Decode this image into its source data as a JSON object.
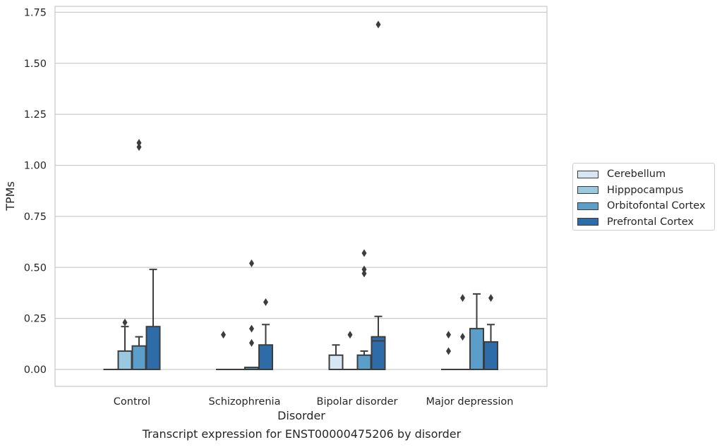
{
  "caption": "Transcript expression for ENST00000475206 by disorder",
  "chart_data": {
    "type": "box",
    "xlabel": "Disorder",
    "ylabel": "TPMs",
    "ylim": [
      -0.08,
      1.77
    ],
    "yticks": [
      0.0,
      0.25,
      0.5,
      0.75,
      1.0,
      1.25,
      1.5,
      1.75
    ],
    "ytick_labels": [
      "0.00",
      "0.25",
      "0.50",
      "0.75",
      "1.00",
      "1.25",
      "1.50",
      "1.75"
    ],
    "grid": "horizontal",
    "legend_position": "right",
    "categories": [
      "Control",
      "Schizophrenia",
      "Bipolar disorder",
      "Major depression"
    ],
    "series": [
      {
        "name": "Cerebellum",
        "color": "#d6e6f4",
        "boxes": [
          {
            "whislo": 0,
            "q1": 0,
            "med": 0,
            "q3": 0,
            "whishi": 0,
            "fliers": []
          },
          {
            "whislo": 0,
            "q1": 0,
            "med": 0,
            "q3": 0,
            "whishi": 0,
            "fliers": [
              0.17
            ]
          },
          {
            "whislo": 0,
            "q1": 0,
            "med": 0,
            "q3": 0.07,
            "whishi": 0.12,
            "fliers": []
          },
          {
            "whislo": 0,
            "q1": 0,
            "med": 0,
            "q3": 0,
            "whishi": 0,
            "fliers": [
              0.09,
              0.17
            ]
          }
        ]
      },
      {
        "name": "Hipppocampus",
        "color": "#9ac8e0",
        "boxes": [
          {
            "whislo": 0,
            "q1": 0,
            "med": 0,
            "q3": 0.09,
            "whishi": 0.21,
            "fliers": [
              0.23
            ]
          },
          {
            "whislo": 0,
            "q1": 0,
            "med": 0,
            "q3": 0,
            "whishi": 0,
            "fliers": []
          },
          {
            "whislo": 0,
            "q1": 0,
            "med": 0,
            "q3": 0,
            "whishi": 0,
            "fliers": [
              0.17
            ]
          },
          {
            "whislo": 0,
            "q1": 0,
            "med": 0,
            "q3": 0,
            "whishi": 0,
            "fliers": [
              0.16,
              0.35
            ]
          }
        ]
      },
      {
        "name": "Orbitofontal Cortex",
        "color": "#5a9ec9",
        "boxes": [
          {
            "whislo": 0,
            "q1": 0,
            "med": 0,
            "q3": 0.115,
            "whishi": 0.16,
            "fliers": [
              1.09,
              1.11
            ]
          },
          {
            "whislo": 0,
            "q1": 0,
            "med": 0,
            "q3": 0.01,
            "whishi": 0.01,
            "fliers": [
              0.13,
              0.2,
              0.52
            ]
          },
          {
            "whislo": 0,
            "q1": 0,
            "med": 0,
            "q3": 0.07,
            "whishi": 0.09,
            "fliers": [
              0.47,
              0.49,
              0.57
            ]
          },
          {
            "whislo": 0,
            "q1": 0,
            "med": 0,
            "q3": 0.2,
            "whishi": 0.37,
            "fliers": []
          }
        ]
      },
      {
        "name": "Prefrontal Cortex",
        "color": "#2e6ca9",
        "boxes": [
          {
            "whislo": 0,
            "q1": 0,
            "med": 0,
            "q3": 0.21,
            "whishi": 0.49,
            "fliers": []
          },
          {
            "whislo": 0,
            "q1": 0,
            "med": 0,
            "q3": 0.12,
            "whishi": 0.22,
            "fliers": [
              0.33
            ]
          },
          {
            "whislo": 0,
            "q1": 0,
            "med": 0.14,
            "q3": 0.16,
            "whishi": 0.26,
            "fliers": [
              1.69
            ]
          },
          {
            "whislo": 0,
            "q1": 0,
            "med": 0,
            "q3": 0.135,
            "whishi": 0.22,
            "fliers": [
              0.35
            ]
          }
        ]
      }
    ]
  }
}
